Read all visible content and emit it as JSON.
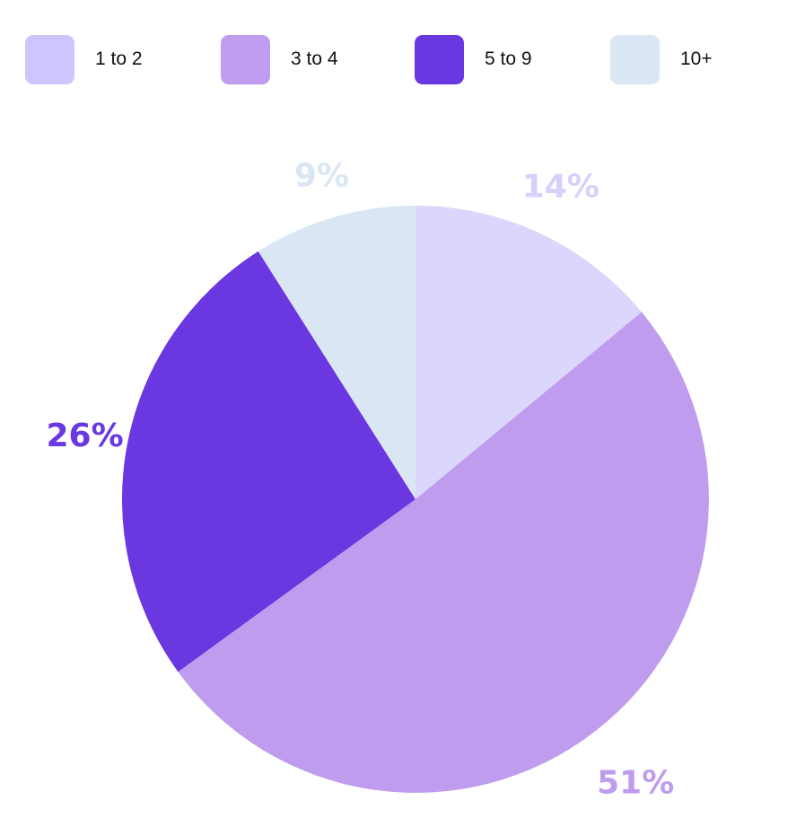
{
  "chart_data": {
    "type": "pie",
    "categories": [
      "1 to 2",
      "3 to 4",
      "5 to 9",
      "10+"
    ],
    "values": [
      14,
      51,
      26,
      9
    ],
    "value_labels": [
      "14%",
      "51%",
      "26%",
      "9%"
    ],
    "colors": [
      "#dbd6fb",
      "#bf9cee",
      "#6a37e0",
      "#dbe6f4"
    ],
    "legend_colors": [
      "#cdc6fc",
      "#bf9cee",
      "#6a37e0",
      "#dbe6f4"
    ],
    "label_colors": [
      "#d7d0fb",
      "#bf9cee",
      "#6a37e0",
      "#dbe6f4"
    ],
    "start_angle_deg": 0,
    "direction": "clockwise",
    "legend_position": "top"
  }
}
